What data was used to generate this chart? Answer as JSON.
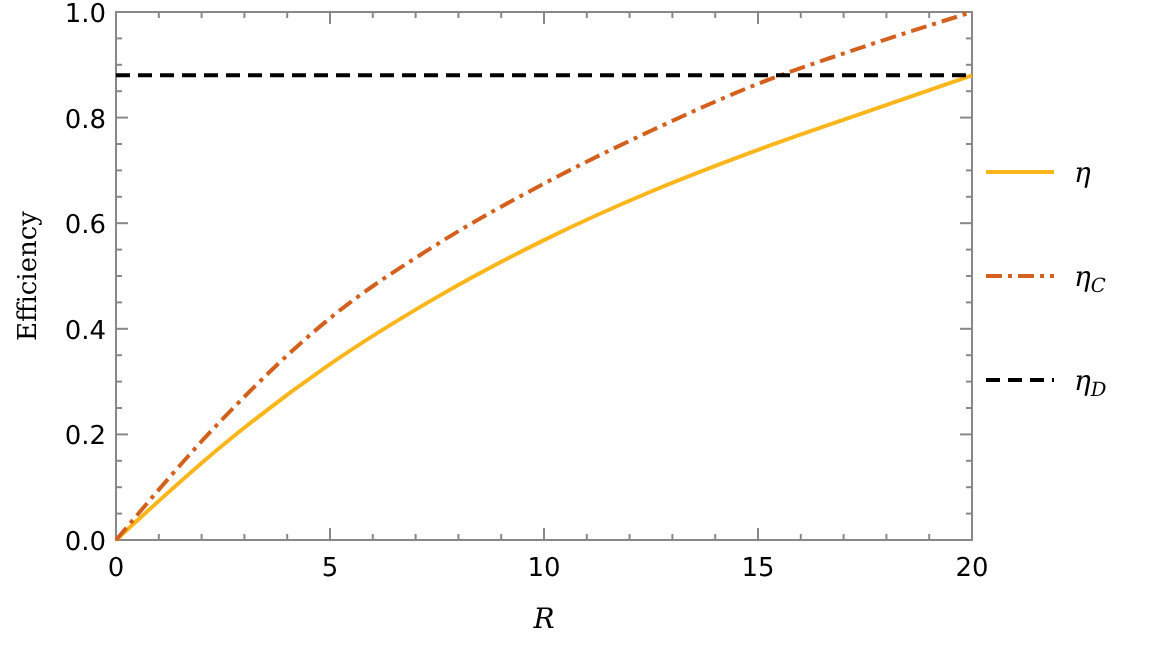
{
  "chart_data": {
    "type": "line",
    "xlabel": "R",
    "ylabel": "Efficiency",
    "x": [
      0,
      2.5,
      5,
      7.5,
      10,
      12.5,
      15,
      17.5,
      20
    ],
    "series": [
      {
        "name": "η",
        "color": "#fbb61c",
        "line_style": "solid",
        "values": [
          0,
          0.18,
          0.333,
          0.46,
          0.568,
          0.66,
          0.739,
          0.81,
          0.88
        ]
      },
      {
        "name": "η$_{C}$",
        "color": "#d4601e",
        "line_style": "dashdot",
        "values": [
          0,
          0.23,
          0.42,
          0.56,
          0.675,
          0.775,
          0.864,
          0.935,
          1.0
        ]
      },
      {
        "name": "η$_{D}$",
        "color": "#000000",
        "line_style": "dashed",
        "x": [
          0,
          20
        ],
        "values": [
          0.88,
          0.88
        ]
      }
    ],
    "xlim": [
      0,
      20
    ],
    "ylim": [
      0,
      1
    ],
    "xticks": [
      0,
      {
        "value": 1,
        "label": null
      },
      {
        "value": 2,
        "label": null
      },
      {
        "value": 3,
        "label": null
      },
      {
        "value": 4,
        "label": null
      },
      5,
      {
        "value": 6,
        "label": null
      },
      {
        "value": 7,
        "label": null
      },
      {
        "value": 8,
        "label": null
      },
      {
        "value": 9,
        "label": null
      },
      10,
      {
        "value": 11,
        "label": null
      },
      {
        "value": 12,
        "label": null
      },
      {
        "value": 13,
        "label": null
      },
      {
        "value": 14,
        "label": null
      },
      15,
      {
        "value": 16,
        "label": null
      },
      {
        "value": 17,
        "label": null
      },
      {
        "value": 18,
        "label": null
      },
      {
        "value": 19,
        "label": null
      },
      20
    ],
    "yticks": [
      {
        "value": 0,
        "label": "0.0"
      },
      {
        "value": 0.05,
        "label": null
      },
      {
        "value": 0.1,
        "label": null
      },
      {
        "value": 0.15,
        "label": null
      },
      0.2,
      {
        "value": 0.25,
        "label": null
      },
      {
        "value": 0.3,
        "label": null
      },
      {
        "value": 0.35,
        "label": null
      },
      0.4,
      {
        "value": 0.45,
        "label": null
      },
      {
        "value": 0.5,
        "label": null
      },
      {
        "value": 0.55,
        "label": null
      },
      0.6,
      {
        "value": 0.65,
        "label": null
      },
      {
        "value": 0.7,
        "label": null
      },
      {
        "value": 0.75,
        "label": null
      },
      0.8,
      {
        "value": 0.85,
        "label": null
      },
      {
        "value": 0.9,
        "label": null
      },
      {
        "value": 0.95,
        "label": null
      },
      {
        "value": 1,
        "label": "1.0"
      }
    ],
    "grid": false,
    "legend": "right"
  }
}
